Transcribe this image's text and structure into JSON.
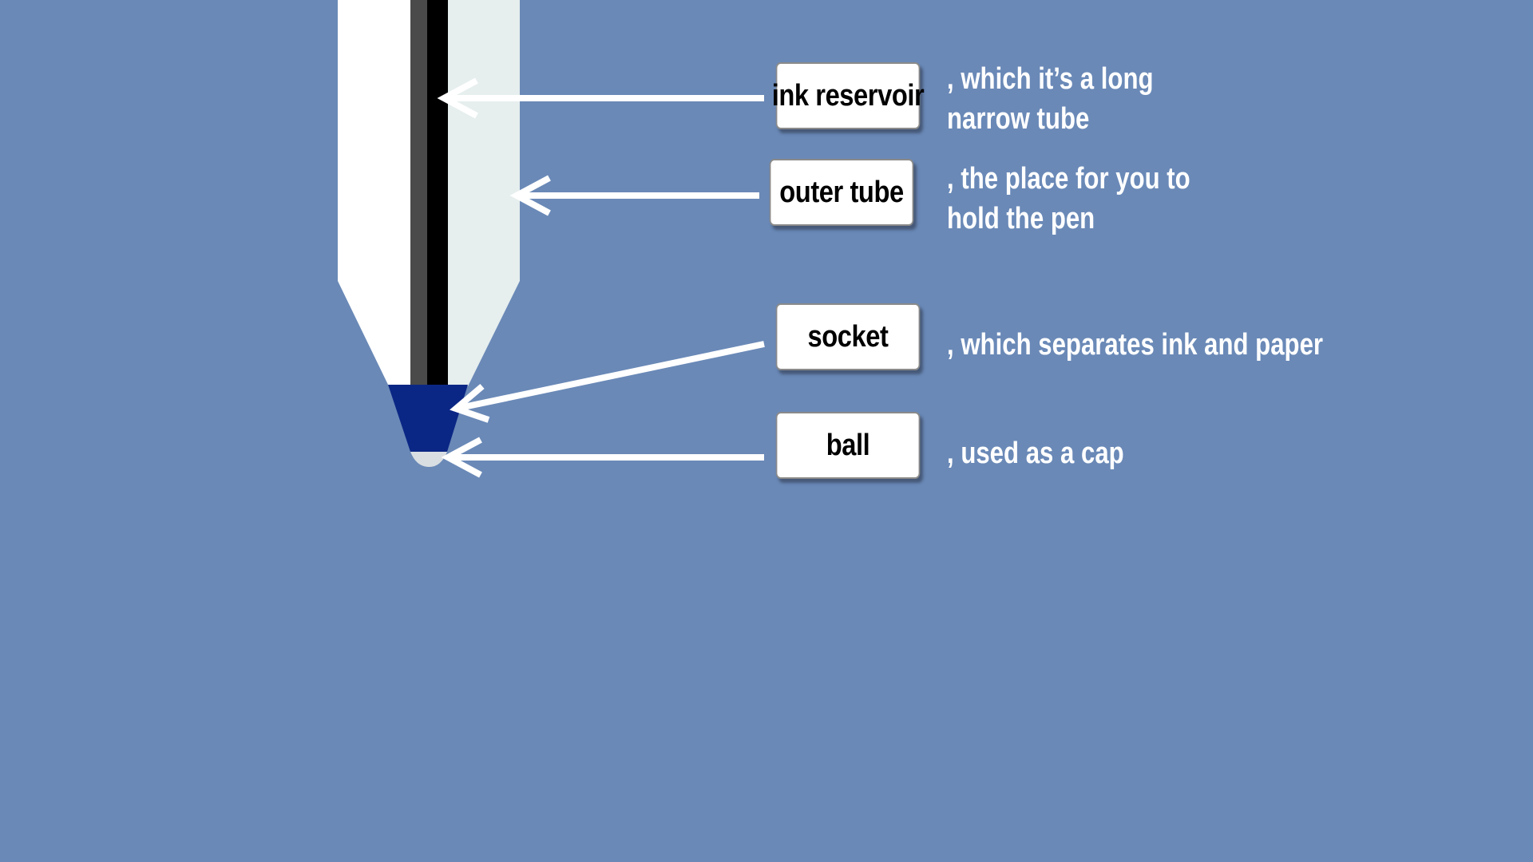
{
  "colors": {
    "background": "#6a89b7",
    "barrel_left": "#ffffff",
    "barrel_right": "#e6eeee",
    "reservoir_dark": "#4a4a4a",
    "reservoir_black": "#000000",
    "socket": "#0b2785",
    "ball": "#d9dee2",
    "arrow": "#ffffff",
    "label_text": "#000000",
    "description_text": "#ffffff"
  },
  "parts": [
    {
      "key": "ink_reservoir",
      "label": "ink reservoir",
      "description_line1": ", which it’s a long",
      "description_line2": "narrow tube"
    },
    {
      "key": "outer_tube",
      "label": "outer tube",
      "description_line1": ", the place for you to",
      "description_line2": "hold the pen"
    },
    {
      "key": "socket",
      "label": "socket",
      "description_line1": ", which separates ink and paper",
      "description_line2": ""
    },
    {
      "key": "ball",
      "label": "ball",
      "description_line1": ", used as a cap",
      "description_line2": ""
    }
  ]
}
